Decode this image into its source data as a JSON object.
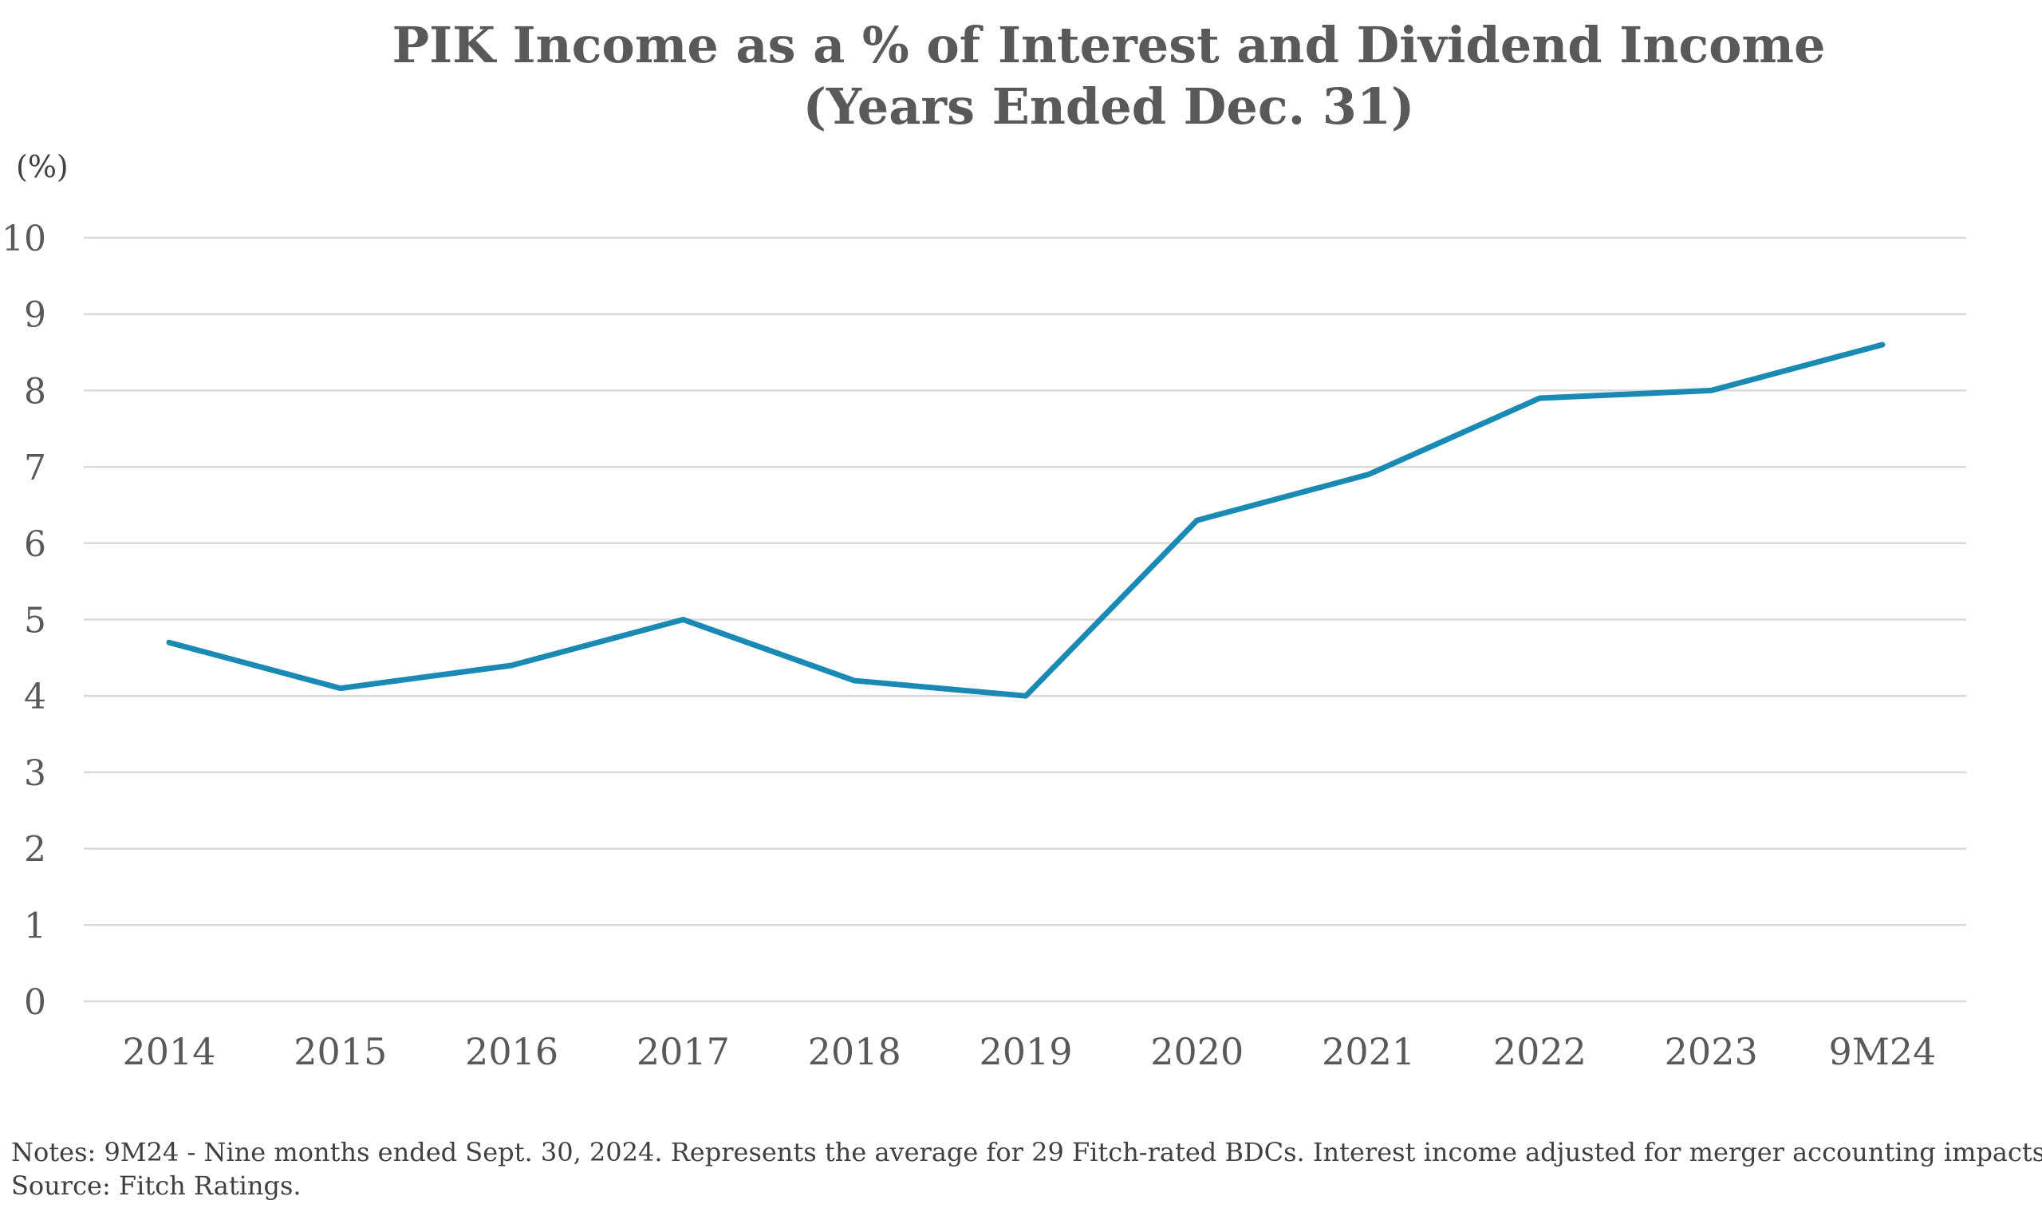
{
  "chart_data": {
    "type": "line",
    "title": [
      "PIK Income as a % of Interest and Dividend Income",
      "(Years Ended Dec. 31)"
    ],
    "ylabel": "(%)",
    "xlabel": "",
    "categories": [
      "2014",
      "2015",
      "2016",
      "2017",
      "2018",
      "2019",
      "2020",
      "2021",
      "2022",
      "2023",
      "9M24"
    ],
    "series": [
      {
        "values": [
          4.7,
          4.1,
          4.4,
          5.0,
          4.2,
          4.0,
          6.3,
          6.9,
          7.9,
          8.0,
          8.6
        ],
        "color": "#1a8ab5"
      }
    ],
    "ylim": [
      0,
      10
    ],
    "yticks": [
      "0",
      "1",
      "2",
      "3",
      "4",
      "5",
      "6",
      "7",
      "8",
      "9",
      "10"
    ],
    "grid": true,
    "legend": "none"
  },
  "notes": [
    "Notes: 9M24 - Nine months ended Sept. 30, 2024. Represents the average for 29 Fitch-rated BDCs. Interest income adjusted for merger accounting impacts.",
    "Source: Fitch Ratings."
  ]
}
